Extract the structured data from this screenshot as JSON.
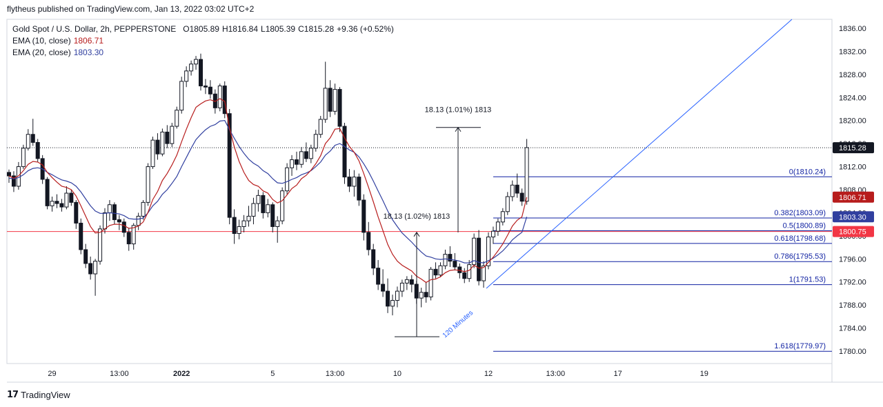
{
  "caption": "flytheus published on TradingView.com, Jan 13, 2022 03:02 UTC+2",
  "brand": "TradingView",
  "legend": {
    "symbol": "Gold Spot / U.S. Dollar, 2h, PEPPERSTONE",
    "o_label": "O",
    "o": "1805.89",
    "h_label": "H",
    "h": "1816.84",
    "l_label": "L",
    "l": "1805.39",
    "c_label": "C",
    "c": "1815.28",
    "change": "+9.36 (+0.52%)",
    "ema10_label": "EMA (10, close)",
    "ema10_value": "1806.71",
    "ema20_label": "EMA (20, close)",
    "ema20_value": "1803.30"
  },
  "chart_data": {
    "type": "candlestick",
    "y_range": [
      1776,
      1838
    ],
    "y_ticks": [
      "1836.00",
      "1832.00",
      "1828.00",
      "1824.00",
      "1820.00",
      "1816.00",
      "1812.00",
      "1808.00",
      "1804.00",
      "1800.00",
      "1796.00",
      "1792.00",
      "1788.00",
      "1784.00",
      "1780.00"
    ],
    "x_ticks": [
      "29",
      "13:00",
      "2022",
      "5",
      "13:00",
      "10",
      "12",
      "13:00",
      "17",
      "19"
    ],
    "x_tick_bars": [
      9,
      23,
      36,
      55,
      68,
      81,
      100,
      114,
      127,
      145
    ],
    "bull_color": "#131722",
    "bear_color": "#131722",
    "ema10_color": "#b71c1c",
    "ema20_color": "#303f9f",
    "price_line": {
      "value": 1815.28,
      "label": "1815.28"
    },
    "ema10_tag": {
      "value": 1806.71,
      "label": "1806.71",
      "color": "#b71c1c"
    },
    "ema20_tag": {
      "value": 1803.3,
      "label": "1803.30",
      "color": "#303f9f"
    },
    "red_hline": {
      "value": 1800.75,
      "label": "1800.75",
      "color": "#f23645"
    },
    "fibonacci": {
      "color": "#0d1fa1",
      "levels": [
        {
          "label": "0(1810.24)",
          "value": 1810.24
        },
        {
          "label": "0.382(1803.09)",
          "value": 1803.09
        },
        {
          "label": "0.5(1800.89)",
          "value": 1800.89
        },
        {
          "label": "0.618(1798.68)",
          "value": 1798.68
        },
        {
          "label": "0.786(1795.53)",
          "value": 1795.53
        },
        {
          "label": "1(1791.53)",
          "value": 1791.53
        },
        {
          "label": "1.618(1779.97)",
          "value": 1779.97
        }
      ]
    },
    "measurements": [
      {
        "label": "18.13 (1.02%) 1813",
        "from": 1782.5,
        "to": 1800.6
      },
      {
        "label": "18.13 (1.01%) 1813",
        "from": 1800.6,
        "to": 1818.8
      }
    ],
    "trendline": {
      "label": "120 Minutes",
      "color": "#2962ff"
    },
    "candles": [
      [
        1811.0,
        1811.5,
        1809.2,
        1810.4
      ],
      [
        1810.4,
        1811.2,
        1807.6,
        1808.6
      ],
      [
        1808.6,
        1812.8,
        1808.0,
        1812.0
      ],
      [
        1812.0,
        1815.8,
        1811.6,
        1815.2
      ],
      [
        1815.2,
        1818.5,
        1814.8,
        1817.6
      ],
      [
        1817.6,
        1820.3,
        1815.6,
        1816.2
      ],
      [
        1816.2,
        1816.8,
        1812.8,
        1813.4
      ],
      [
        1813.4,
        1814.0,
        1809.0,
        1809.8
      ],
      [
        1809.8,
        1810.2,
        1804.6,
        1805.2
      ],
      [
        1805.2,
        1806.8,
        1804.2,
        1806.0
      ],
      [
        1806.0,
        1807.2,
        1804.8,
        1805.6
      ],
      [
        1805.6,
        1806.4,
        1804.2,
        1805.0
      ],
      [
        1805.0,
        1808.6,
        1804.6,
        1807.4
      ],
      [
        1807.4,
        1808.0,
        1805.2,
        1805.8
      ],
      [
        1805.8,
        1806.2,
        1801.2,
        1802.2
      ],
      [
        1802.2,
        1803.0,
        1796.8,
        1797.6
      ],
      [
        1797.6,
        1798.6,
        1794.4,
        1795.2
      ],
      [
        1795.2,
        1796.4,
        1792.4,
        1793.4
      ],
      [
        1793.4,
        1796.0,
        1789.6,
        1795.6
      ],
      [
        1795.6,
        1801.8,
        1795.0,
        1801.2
      ],
      [
        1801.2,
        1804.8,
        1800.4,
        1804.0
      ],
      [
        1804.0,
        1806.2,
        1802.6,
        1805.4
      ],
      [
        1805.4,
        1805.8,
        1802.0,
        1802.8
      ],
      [
        1802.8,
        1803.6,
        1801.0,
        1802.4
      ],
      [
        1802.4,
        1803.0,
        1799.8,
        1800.6
      ],
      [
        1800.6,
        1801.4,
        1797.4,
        1798.6
      ],
      [
        1798.6,
        1802.2,
        1797.6,
        1801.8
      ],
      [
        1801.8,
        1804.0,
        1801.0,
        1803.4
      ],
      [
        1803.4,
        1806.2,
        1802.8,
        1805.8
      ],
      [
        1805.8,
        1812.6,
        1805.2,
        1812.0
      ],
      [
        1812.0,
        1817.2,
        1811.6,
        1816.6
      ],
      [
        1816.6,
        1817.8,
        1813.2,
        1814.2
      ],
      [
        1814.2,
        1818.6,
        1813.8,
        1818.0
      ],
      [
        1818.0,
        1819.2,
        1815.2,
        1816.0
      ],
      [
        1816.0,
        1819.6,
        1815.4,
        1819.0
      ],
      [
        1819.0,
        1822.4,
        1818.6,
        1821.8
      ],
      [
        1821.8,
        1827.6,
        1821.2,
        1826.8
      ],
      [
        1826.8,
        1829.4,
        1825.8,
        1828.6
      ],
      [
        1828.6,
        1830.4,
        1827.8,
        1829.8
      ],
      [
        1829.8,
        1831.2,
        1828.8,
        1830.6
      ],
      [
        1830.6,
        1831.6,
        1825.2,
        1826.0
      ],
      [
        1826.0,
        1827.2,
        1824.6,
        1825.8
      ],
      [
        1825.8,
        1827.0,
        1823.8,
        1824.6
      ],
      [
        1824.6,
        1825.4,
        1821.2,
        1822.2
      ],
      [
        1822.2,
        1826.4,
        1821.6,
        1826.0
      ],
      [
        1826.0,
        1826.8,
        1820.4,
        1821.2
      ],
      [
        1821.2,
        1822.0,
        1802.0,
        1803.2
      ],
      [
        1803.2,
        1804.6,
        1798.6,
        1800.4
      ],
      [
        1800.4,
        1802.8,
        1799.4,
        1801.6
      ],
      [
        1801.6,
        1803.6,
        1800.6,
        1802.6
      ],
      [
        1802.6,
        1805.2,
        1801.6,
        1803.4
      ],
      [
        1803.4,
        1806.6,
        1802.0,
        1805.6
      ],
      [
        1805.6,
        1808.0,
        1804.2,
        1807.0
      ],
      [
        1807.0,
        1807.6,
        1803.0,
        1804.0
      ],
      [
        1804.0,
        1806.4,
        1803.2,
        1805.4
      ],
      [
        1805.4,
        1805.8,
        1800.6,
        1801.6
      ],
      [
        1801.6,
        1803.4,
        1798.8,
        1802.6
      ],
      [
        1802.6,
        1808.4,
        1802.0,
        1807.8
      ],
      [
        1807.8,
        1812.6,
        1807.2,
        1811.8
      ],
      [
        1811.8,
        1814.0,
        1810.4,
        1813.2
      ],
      [
        1813.2,
        1814.6,
        1811.4,
        1812.4
      ],
      [
        1812.4,
        1815.4,
        1811.8,
        1814.6
      ],
      [
        1814.6,
        1816.2,
        1812.8,
        1813.4
      ],
      [
        1813.4,
        1815.8,
        1812.6,
        1815.2
      ],
      [
        1815.2,
        1818.4,
        1814.6,
        1817.6
      ],
      [
        1817.6,
        1820.8,
        1817.0,
        1820.2
      ],
      [
        1820.2,
        1830.2,
        1819.6,
        1825.6
      ],
      [
        1825.6,
        1827.0,
        1820.6,
        1821.6
      ],
      [
        1821.6,
        1826.4,
        1821.0,
        1825.4
      ],
      [
        1825.4,
        1825.8,
        1818.0,
        1819.0
      ],
      [
        1819.0,
        1819.6,
        1809.0,
        1810.2
      ],
      [
        1810.2,
        1811.6,
        1807.6,
        1808.6
      ],
      [
        1808.6,
        1811.4,
        1806.8,
        1810.2
      ],
      [
        1810.2,
        1810.8,
        1805.2,
        1806.2
      ],
      [
        1806.2,
        1807.2,
        1799.2,
        1800.6
      ],
      [
        1800.6,
        1802.4,
        1796.6,
        1797.6
      ],
      [
        1797.6,
        1798.6,
        1793.2,
        1794.4
      ],
      [
        1794.4,
        1795.8,
        1790.6,
        1791.6
      ],
      [
        1791.6,
        1794.2,
        1789.4,
        1790.4
      ],
      [
        1790.4,
        1792.6,
        1786.6,
        1787.8
      ],
      [
        1787.8,
        1789.8,
        1786.2,
        1788.8
      ],
      [
        1788.8,
        1791.2,
        1787.6,
        1790.4
      ],
      [
        1790.4,
        1792.4,
        1789.4,
        1791.8
      ],
      [
        1791.8,
        1793.0,
        1790.6,
        1792.4
      ],
      [
        1792.4,
        1793.2,
        1790.2,
        1791.6
      ],
      [
        1791.6,
        1792.2,
        1788.2,
        1789.2
      ],
      [
        1789.2,
        1791.0,
        1787.6,
        1790.2
      ],
      [
        1790.2,
        1792.0,
        1788.4,
        1789.4
      ],
      [
        1789.4,
        1794.6,
        1788.8,
        1794.2
      ],
      [
        1794.2,
        1795.4,
        1792.6,
        1793.2
      ],
      [
        1793.2,
        1795.4,
        1792.8,
        1794.8
      ],
      [
        1794.8,
        1797.6,
        1794.2,
        1796.8
      ],
      [
        1796.8,
        1798.2,
        1794.6,
        1795.6
      ],
      [
        1795.6,
        1797.0,
        1794.0,
        1794.6
      ],
      [
        1794.6,
        1795.2,
        1792.6,
        1793.6
      ],
      [
        1793.6,
        1794.4,
        1791.8,
        1792.6
      ],
      [
        1792.6,
        1795.8,
        1792.0,
        1795.0
      ],
      [
        1795.0,
        1800.4,
        1794.4,
        1799.6
      ],
      [
        1799.6,
        1801.0,
        1791.4,
        1792.2
      ],
      [
        1792.2,
        1795.6,
        1791.0,
        1794.8
      ],
      [
        1794.8,
        1800.6,
        1794.2,
        1799.8
      ],
      [
        1799.8,
        1801.6,
        1798.6,
        1800.8
      ],
      [
        1800.8,
        1803.0,
        1800.0,
        1802.4
      ],
      [
        1802.4,
        1804.8,
        1801.8,
        1804.2
      ],
      [
        1804.2,
        1807.6,
        1803.6,
        1806.8
      ],
      [
        1806.8,
        1809.6,
        1806.0,
        1808.8
      ],
      [
        1808.8,
        1810.8,
        1806.6,
        1807.4
      ],
      [
        1807.4,
        1808.2,
        1805.2,
        1806.0
      ],
      [
        1806.0,
        1816.8,
        1805.4,
        1815.3
      ]
    ],
    "ema10": [
      1810.4,
      1810.0,
      1810.4,
      1811.3,
      1812.4,
      1812.9,
      1812.8,
      1812.3,
      1811.0,
      1810.1,
      1809.3,
      1808.6,
      1808.4,
      1808.0,
      1806.9,
      1805.2,
      1803.4,
      1801.6,
      1800.5,
      1800.6,
      1801.2,
      1801.8,
      1802.0,
      1802.0,
      1801.8,
      1801.3,
      1801.4,
      1801.7,
      1802.4,
      1804.1,
      1806.3,
      1807.7,
      1809.6,
      1810.8,
      1812.3,
      1814.0,
      1816.3,
      1818.5,
      1820.5,
      1822.3,
      1822.9,
      1823.4,
      1823.6,
      1823.3,
      1823.8,
      1823.3,
      1818.7,
      1815.4,
      1812.9,
      1811.0,
      1809.6,
      1808.9,
      1808.6,
      1807.8,
      1807.4,
      1806.3,
      1805.7,
      1806.1,
      1807.1,
      1808.2,
      1808.8,
      1809.9,
      1810.5,
      1811.4,
      1812.5,
      1813.9,
      1816.0,
      1817.0,
      1818.5,
      1818.6,
      1817.0,
      1815.5,
      1814.5,
      1813.0,
      1810.8,
      1808.4,
      1805.9,
      1803.3,
      1800.9,
      1798.5,
      1796.8,
      1795.6,
      1794.9,
      1794.4,
      1793.9,
      1793.0,
      1792.5,
      1791.9,
      1792.4,
      1792.5,
      1792.9,
      1793.6,
      1794.0,
      1794.1,
      1794.0,
      1793.8,
      1794.0,
      1794.9,
      1794.4,
      1794.5,
      1795.4,
      1796.3,
      1797.4,
      1798.6,
      1800.1,
      1801.7,
      1802.7,
      1803.3,
      1806.71
    ],
    "ema20": [
      1810.0,
      1809.9,
      1810.1,
      1810.6,
      1811.3,
      1811.7,
      1811.8,
      1811.6,
      1811.0,
      1810.6,
      1810.1,
      1809.7,
      1809.5,
      1809.2,
      1808.6,
      1807.6,
      1806.4,
      1805.2,
      1804.3,
      1803.9,
      1803.9,
      1804.0,
      1803.9,
      1803.8,
      1803.5,
      1803.0,
      1802.9,
      1802.9,
      1803.1,
      1804.0,
      1805.2,
      1806.0,
      1807.2,
      1808.0,
      1809.1,
      1810.3,
      1812.0,
      1813.6,
      1815.2,
      1816.7,
      1817.6,
      1818.4,
      1819.0,
      1819.3,
      1819.9,
      1820.0,
      1818.4,
      1816.9,
      1815.5,
      1814.3,
      1813.3,
      1812.6,
      1812.1,
      1811.3,
      1810.8,
      1809.9,
      1809.2,
      1809.1,
      1809.4,
      1809.8,
      1810.1,
      1810.6,
      1810.9,
      1811.3,
      1812.0,
      1812.8,
      1814.0,
      1814.7,
      1815.7,
      1816.0,
      1815.5,
      1814.9,
      1814.5,
      1813.7,
      1812.5,
      1811.1,
      1809.5,
      1807.8,
      1806.1,
      1804.3,
      1802.8,
      1801.6,
      1800.5,
      1799.7,
      1798.9,
      1798.0,
      1797.2,
      1796.5,
      1796.3,
      1796.0,
      1795.9,
      1796.0,
      1795.9,
      1795.8,
      1795.6,
      1795.3,
      1795.3,
      1795.7,
      1795.4,
      1795.3,
      1795.7,
      1796.1,
      1796.7,
      1797.4,
      1798.3,
      1799.3,
      1800.0,
      1800.6,
      1803.3
    ]
  }
}
